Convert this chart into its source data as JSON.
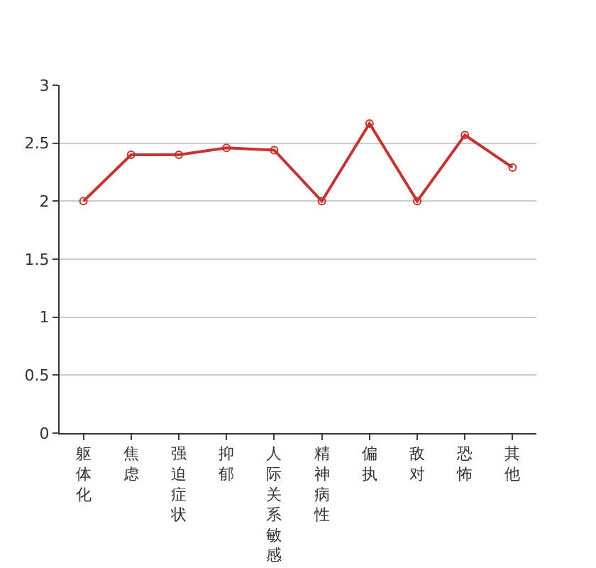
{
  "chart_data": {
    "type": "line",
    "categories": [
      "躯体化",
      "焦虑",
      "强迫症状",
      "抑郁",
      "人际关系敏感",
      "精神病性",
      "偏执",
      "敌对",
      "恐怖",
      "其他"
    ],
    "series": [
      {
        "color": "#c23531",
        "values": [
          2,
          2.4,
          2.4,
          2.46,
          2.44,
          2,
          2.67,
          2,
          2.57,
          2.29
        ]
      }
    ],
    "ylim": [
      0,
      3
    ],
    "yticks": [
      0,
      0.5,
      1,
      1.5,
      2,
      2.5,
      3
    ],
    "grid": "y",
    "marker": "circle",
    "line_style": "solid",
    "legend": false
  }
}
